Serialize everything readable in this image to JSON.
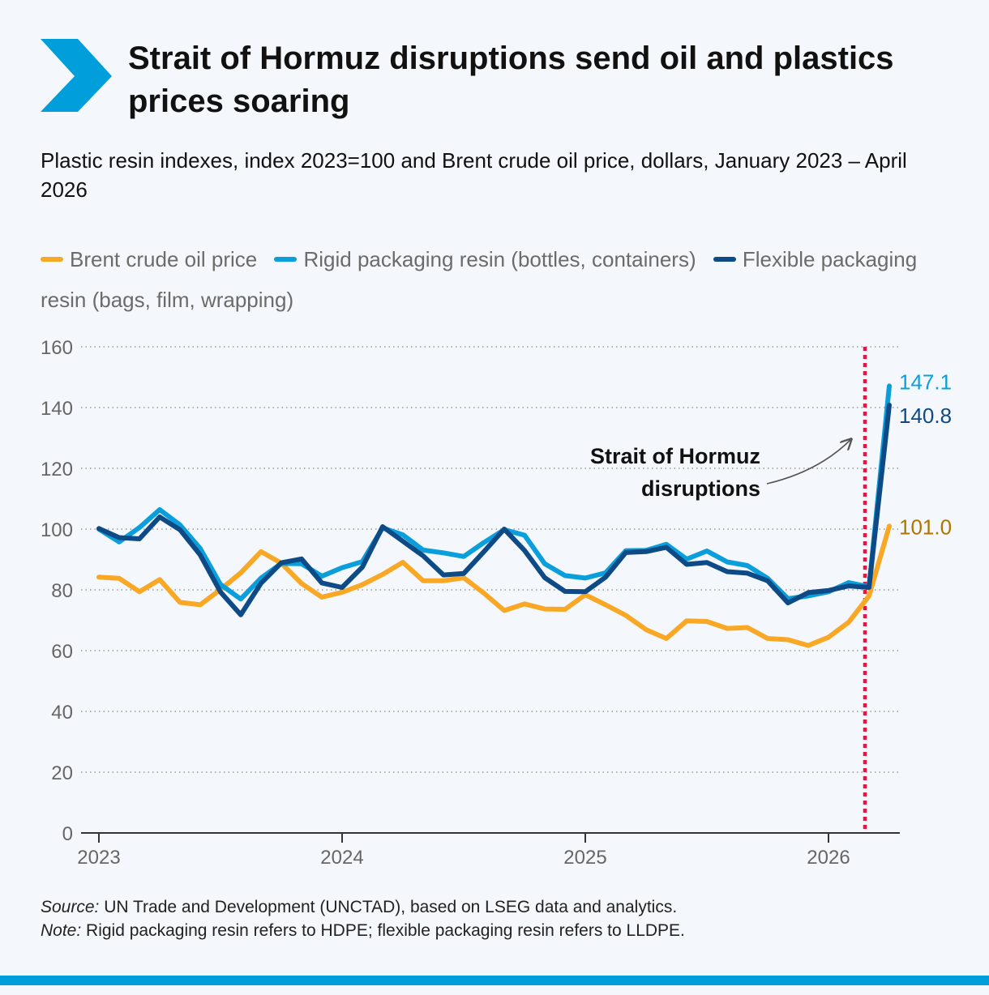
{
  "header": {
    "title": "Strait of Hormuz disruptions send oil and plastics prices soaring",
    "subtitle": "Plastic resin indexes, index 2023=100 and Brent crude oil price, dollars, January 2023 – April 2026"
  },
  "footer": {
    "source_label": "Source:",
    "source_text": " UN Trade and Development (UNCTAD), based on LSEG data and analytics.",
    "note_label": "Note:",
    "note_text": " Rigid packaging resin refers to HDPE; flexible packaging resin refers to LLDPE."
  },
  "colors": {
    "brand": "#009edb",
    "oil": "#f9a825",
    "rigid": "#0a9fdb",
    "flexible": "#0d4a86",
    "marker": "#e5173f",
    "grid": "#888888"
  },
  "chart_data": {
    "type": "line",
    "ylim": [
      0,
      160
    ],
    "yticks": [
      "0",
      "20",
      "40",
      "60",
      "80",
      "100",
      "120",
      "140",
      "160"
    ],
    "xtick_labels": [
      "2023",
      "2024",
      "2025",
      "2026"
    ],
    "grid": "horizontal dotted",
    "legend_position": "top",
    "x": [
      "2023-01",
      "2023-02",
      "2023-03",
      "2023-04",
      "2023-05",
      "2023-06",
      "2023-07",
      "2023-08",
      "2023-09",
      "2023-10",
      "2023-11",
      "2023-12",
      "2024-01",
      "2024-02",
      "2024-03",
      "2024-04",
      "2024-05",
      "2024-06",
      "2024-07",
      "2024-08",
      "2024-09",
      "2024-10",
      "2024-11",
      "2024-12",
      "2025-01",
      "2025-02",
      "2025-03",
      "2025-04",
      "2025-05",
      "2025-06",
      "2025-07",
      "2025-08",
      "2025-09",
      "2025-10",
      "2025-11",
      "2025-12",
      "2026-01",
      "2026-02",
      "2026-03",
      "2026-04"
    ],
    "series": [
      {
        "name": "Brent crude oil price",
        "color": "#f9a825",
        "values": [
          84.2,
          83.8,
          79.4,
          83.4,
          75.9,
          75.1,
          80.1,
          85.6,
          92.6,
          88.8,
          82.1,
          77.6,
          79.2,
          81.7,
          85.1,
          89.1,
          83.0,
          83.0,
          84.0,
          78.9,
          73.2,
          75.4,
          73.7,
          73.6,
          78.4,
          75.1,
          71.6,
          66.9,
          64.0,
          69.8,
          69.6,
          67.3,
          67.6,
          64.0,
          63.6,
          61.7,
          64.4,
          69.4,
          78.0,
          101.0
        ],
        "end_label": "101.0"
      },
      {
        "name": "Rigid packaging resin (bottles, containers)",
        "color": "#0a9fdb",
        "values": [
          100.0,
          95.8,
          100.5,
          106.4,
          101.4,
          93.6,
          81.8,
          77.0,
          83.9,
          88.7,
          88.6,
          84.5,
          87.3,
          89.3,
          100.4,
          98.1,
          93.1,
          92.2,
          91.0,
          95.6,
          99.8,
          98.0,
          88.6,
          84.7,
          83.9,
          85.6,
          92.9,
          93.0,
          95.0,
          90.1,
          92.8,
          89.2,
          88.0,
          83.8,
          77.1,
          78.0,
          79.4,
          82.4,
          81.0,
          147.1
        ],
        "end_label": "147.1"
      },
      {
        "name": "Flexible packaging resin (bags, film, wrapping)",
        "color": "#0d4a86",
        "values": [
          100.2,
          97.2,
          96.8,
          104.0,
          99.8,
          91.5,
          79.3,
          71.8,
          82.2,
          88.9,
          90.2,
          82.3,
          80.8,
          87.5,
          100.8,
          96.0,
          91.2,
          84.9,
          85.4,
          92.6,
          100.0,
          93.0,
          84.0,
          79.5,
          79.4,
          84.2,
          92.3,
          92.6,
          94.0,
          88.4,
          89.0,
          86.0,
          85.5,
          83.0,
          75.7,
          79.1,
          79.8,
          81.3,
          80.8,
          140.8
        ],
        "end_label": "140.8"
      }
    ],
    "vertical_marker": {
      "x": "2026-03",
      "style": "dotted red line",
      "annotation": [
        "Strait of Hormuz",
        "disruptions"
      ]
    }
  }
}
